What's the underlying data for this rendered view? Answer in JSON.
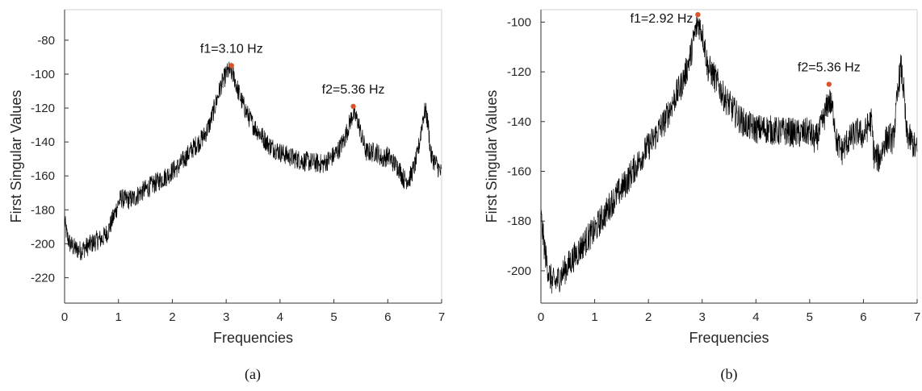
{
  "chart_data": [
    {
      "type": "line",
      "caption": "(a)",
      "xlabel": "Frequencies",
      "ylabel": "First Singular Values",
      "xlim": [
        0,
        7
      ],
      "ylim": [
        -235,
        -62
      ],
      "xticks": [
        0,
        1,
        2,
        3,
        4,
        5,
        6,
        7
      ],
      "yticks": [
        -220,
        -200,
        -180,
        -160,
        -140,
        -120,
        -100,
        -80
      ],
      "grid": false,
      "peaks": [
        {
          "label": "f1=3.10 Hz",
          "x": 3.1,
          "y": -95
        },
        {
          "label": "f2=5.36 Hz",
          "x": 5.36,
          "y": -119
        }
      ],
      "series": [
        {
          "x": [
            0,
            0.05,
            0.1,
            0.2,
            0.3,
            0.4,
            0.5,
            0.6,
            0.7,
            0.8,
            0.9,
            1.0,
            1.05,
            1.1,
            1.2,
            1.3,
            1.4,
            1.5,
            1.6,
            1.7,
            1.8,
            1.9,
            2.0,
            2.1,
            2.2,
            2.3,
            2.4,
            2.5,
            2.6,
            2.7,
            2.8,
            2.9,
            3.0,
            3.05,
            3.1,
            3.15,
            3.2,
            3.3,
            3.4,
            3.5,
            3.6,
            3.7,
            3.8,
            3.9,
            4.0,
            4.2,
            4.4,
            4.6,
            4.8,
            5.0,
            5.1,
            5.2,
            5.3,
            5.36,
            5.45,
            5.5,
            5.6,
            5.7,
            5.8,
            5.9,
            6.0,
            6.1,
            6.2,
            6.3,
            6.4,
            6.5,
            6.55,
            6.6,
            6.65,
            6.7,
            6.75,
            6.8,
            6.9,
            7.0
          ],
          "y": [
            -187,
            -196,
            -200,
            -203,
            -204,
            -202,
            -200,
            -198,
            -197,
            -193,
            -185,
            -176,
            -173,
            -174,
            -174,
            -173,
            -170,
            -168,
            -166,
            -164,
            -162,
            -160,
            -157,
            -155,
            -151,
            -147,
            -143,
            -140,
            -136,
            -129,
            -118,
            -107,
            -100,
            -98,
            -99,
            -102,
            -108,
            -117,
            -124,
            -130,
            -134,
            -138,
            -142,
            -144,
            -146,
            -149,
            -151,
            -152,
            -153,
            -148,
            -144,
            -138,
            -128,
            -123,
            -128,
            -135,
            -146,
            -146,
            -146,
            -150,
            -148,
            -152,
            -155,
            -162,
            -162,
            -154,
            -148,
            -138,
            -126,
            -121,
            -130,
            -148,
            -153,
            -159
          ]
        }
      ]
    },
    {
      "type": "line",
      "caption": "(b)",
      "xlabel": "Frequencies",
      "ylabel": "First Singular Values",
      "xlim": [
        0,
        7
      ],
      "ylim": [
        -213,
        -95
      ],
      "xticks": [
        0,
        1,
        2,
        3,
        4,
        5,
        6,
        7
      ],
      "yticks": [
        -200,
        -180,
        -160,
        -140,
        -120,
        -100
      ],
      "grid": false,
      "peaks": [
        {
          "label": "f1=2.92 Hz",
          "x": 2.92,
          "y": -97
        },
        {
          "label": "f2=5.36 Hz",
          "x": 5.36,
          "y": -125
        }
      ],
      "series": [
        {
          "x": [
            0,
            0.05,
            0.1,
            0.15,
            0.2,
            0.25,
            0.3,
            0.4,
            0.5,
            0.6,
            0.7,
            0.8,
            0.9,
            1.0,
            1.1,
            1.2,
            1.3,
            1.4,
            1.5,
            1.6,
            1.7,
            1.8,
            1.9,
            2.0,
            2.1,
            2.2,
            2.3,
            2.4,
            2.5,
            2.6,
            2.7,
            2.8,
            2.85,
            2.92,
            3.0,
            3.05,
            3.1,
            3.2,
            3.3,
            3.4,
            3.5,
            3.6,
            3.7,
            3.8,
            3.9,
            4.0,
            4.2,
            4.4,
            4.6,
            4.8,
            5.0,
            5.1,
            5.2,
            5.3,
            5.36,
            5.45,
            5.5,
            5.6,
            5.7,
            5.8,
            5.9,
            6.0,
            6.1,
            6.15,
            6.2,
            6.3,
            6.4,
            6.5,
            6.55,
            6.6,
            6.65,
            6.7,
            6.75,
            6.8,
            6.9,
            7.0
          ],
          "y": [
            -178,
            -188,
            -196,
            -201,
            -204,
            -205,
            -204,
            -201,
            -198,
            -195,
            -192,
            -189,
            -186,
            -184,
            -180,
            -177,
            -173,
            -170,
            -167,
            -164,
            -160,
            -157,
            -153,
            -150,
            -147,
            -143,
            -140,
            -135,
            -130,
            -126,
            -120,
            -112,
            -106,
            -100,
            -104,
            -110,
            -118,
            -121,
            -125,
            -130,
            -133,
            -136,
            -139,
            -141,
            -142,
            -143,
            -143,
            -144,
            -144,
            -145,
            -144,
            -148,
            -143,
            -136,
            -131,
            -137,
            -148,
            -152,
            -148,
            -146,
            -144,
            -146,
            -141,
            -140,
            -154,
            -155,
            -148,
            -146,
            -148,
            -138,
            -125,
            -118,
            -128,
            -145,
            -148,
            -152
          ]
        }
      ]
    }
  ]
}
